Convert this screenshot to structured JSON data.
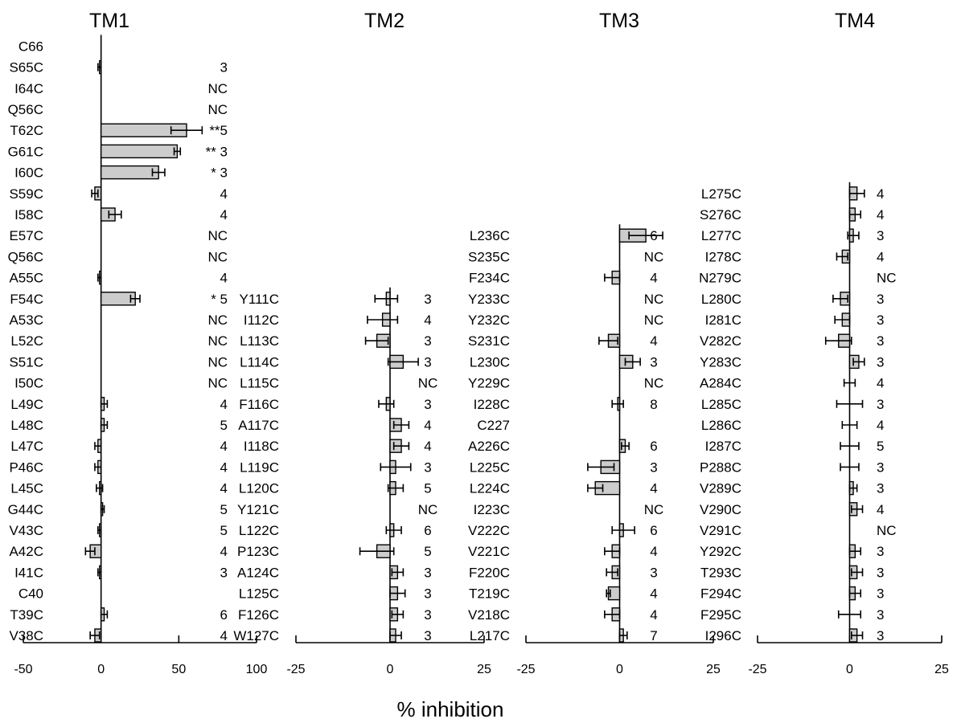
{
  "chart_data": {
    "type": "bar",
    "orientation": "horizontal",
    "xlabel": "% inhibition",
    "panels": [
      {
        "title": "TM1",
        "xlim": [
          -50,
          100
        ],
        "xticks": [
          "-50",
          "0",
          "50",
          "100"
        ],
        "tick_values": [
          -50,
          0,
          50,
          100
        ],
        "rows": [
          {
            "label": "C66",
            "value": null,
            "err": null,
            "n": ""
          },
          {
            "label": "S65C",
            "value": -1,
            "err": 1,
            "n": "3"
          },
          {
            "label": "I64C",
            "value": null,
            "err": null,
            "n": "NC"
          },
          {
            "label": "Q56C",
            "value": null,
            "err": null,
            "n": "NC"
          },
          {
            "label": "T62C",
            "value": 55,
            "err": 10,
            "n": "**5"
          },
          {
            "label": "G61C",
            "value": 49,
            "err": 2,
            "n": "** 3"
          },
          {
            "label": "I60C",
            "value": 37,
            "err": 4,
            "n": "* 3"
          },
          {
            "label": "S59C",
            "value": -4,
            "err": 2,
            "n": "4"
          },
          {
            "label": "I58C",
            "value": 9,
            "err": 4,
            "n": "4"
          },
          {
            "label": "E57C",
            "value": null,
            "err": null,
            "n": "NC"
          },
          {
            "label": "Q56C",
            "value": null,
            "err": null,
            "n": "NC"
          },
          {
            "label": "A55C",
            "value": -1,
            "err": 1,
            "n": "4"
          },
          {
            "label": "F54C",
            "value": 22,
            "err": 3,
            "n": "* 5"
          },
          {
            "label": "A53C",
            "value": null,
            "err": null,
            "n": "NC"
          },
          {
            "label": "L52C",
            "value": null,
            "err": null,
            "n": "NC"
          },
          {
            "label": "S51C",
            "value": null,
            "err": null,
            "n": "NC"
          },
          {
            "label": "I50C",
            "value": null,
            "err": null,
            "n": "NC"
          },
          {
            "label": "L49C",
            "value": 2,
            "err": 2,
            "n": "4"
          },
          {
            "label": "L48C",
            "value": 2,
            "err": 2,
            "n": "5"
          },
          {
            "label": "L47C",
            "value": -2,
            "err": 2,
            "n": "4"
          },
          {
            "label": "P46C",
            "value": -2,
            "err": 2,
            "n": "4"
          },
          {
            "label": "L45C",
            "value": -1,
            "err": 2,
            "n": "4"
          },
          {
            "label": "G44C",
            "value": 1,
            "err": 1,
            "n": "5"
          },
          {
            "label": "V43C",
            "value": -1,
            "err": 1,
            "n": "5"
          },
          {
            "label": "A42C",
            "value": -7,
            "err": 3,
            "n": "4"
          },
          {
            "label": "I41C",
            "value": -1,
            "err": 1,
            "n": "3"
          },
          {
            "label": "C40",
            "value": null,
            "err": null,
            "n": ""
          },
          {
            "label": "T39C",
            "value": 2,
            "err": 2,
            "n": "6"
          },
          {
            "label": "V38C",
            "value": -4,
            "err": 3,
            "n": "4"
          }
        ]
      },
      {
        "title": "TM2",
        "xlim": [
          -25,
          25
        ],
        "xticks": [
          "-25",
          "0",
          "25"
        ],
        "tick_values": [
          -25,
          0,
          25
        ],
        "rows": [
          {
            "label": "Y111C",
            "value": -1,
            "err": 3,
            "n": "3"
          },
          {
            "label": "I112C",
            "value": -2,
            "err": 4,
            "n": "4"
          },
          {
            "label": "L113C",
            "value": -3.5,
            "err": 3,
            "n": "3"
          },
          {
            "label": "L114C",
            "value": 3.5,
            "err": 4,
            "n": "3"
          },
          {
            "label": "L115C",
            "value": null,
            "err": null,
            "n": "NC"
          },
          {
            "label": "F116C",
            "value": -1,
            "err": 2,
            "n": "3"
          },
          {
            "label": "A117C",
            "value": 3,
            "err": 2,
            "n": "4"
          },
          {
            "label": "I118C",
            "value": 3,
            "err": 2,
            "n": "4"
          },
          {
            "label": "L119C",
            "value": 1.5,
            "err": 4,
            "n": "3"
          },
          {
            "label": "L120C",
            "value": 1.5,
            "err": 2,
            "n": "5"
          },
          {
            "label": "Y121C",
            "value": null,
            "err": null,
            "n": "NC"
          },
          {
            "label": "L122C",
            "value": 1,
            "err": 2,
            "n": "6"
          },
          {
            "label": "P123C",
            "value": -3.5,
            "err": 4.5,
            "n": "5"
          },
          {
            "label": "A124C",
            "value": 2,
            "err": 1.5,
            "n": "3"
          },
          {
            "label": "L125C",
            "value": 2,
            "err": 2,
            "n": "3"
          },
          {
            "label": "F126C",
            "value": 2,
            "err": 1.5,
            "n": "3"
          },
          {
            "label": "W127C",
            "value": 1.5,
            "err": 1.5,
            "n": "3"
          }
        ]
      },
      {
        "title": "TM3",
        "xlim": [
          -25,
          25
        ],
        "xticks": [
          "-25",
          "0",
          "25"
        ],
        "tick_values": [
          -25,
          0,
          25
        ],
        "rows": [
          {
            "label": "L236C",
            "value": 7,
            "err": 4.5,
            "n": "6"
          },
          {
            "label": "S235C",
            "value": null,
            "err": null,
            "n": "NC"
          },
          {
            "label": "F234C",
            "value": -2,
            "err": 2,
            "n": "4"
          },
          {
            "label": "Y233C",
            "value": null,
            "err": null,
            "n": "NC"
          },
          {
            "label": "Y232C",
            "value": null,
            "err": null,
            "n": "NC"
          },
          {
            "label": "S231C",
            "value": -3,
            "err": 2.5,
            "n": "4"
          },
          {
            "label": "L230C",
            "value": 3.5,
            "err": 2,
            "n": "3"
          },
          {
            "label": "Y229C",
            "value": null,
            "err": null,
            "n": "NC"
          },
          {
            "label": "I228C",
            "value": -0.5,
            "err": 1.5,
            "n": "8"
          },
          {
            "label": "C227",
            "value": null,
            "err": null,
            "n": ""
          },
          {
            "label": "A226C",
            "value": 1.5,
            "err": 1,
            "n": "6"
          },
          {
            "label": "L225C",
            "value": -5,
            "err": 3.5,
            "n": "3"
          },
          {
            "label": "L224C",
            "value": -6.5,
            "err": 2,
            "n": "4"
          },
          {
            "label": "I223C",
            "value": null,
            "err": null,
            "n": "NC"
          },
          {
            "label": "V222C",
            "value": 1,
            "err": 3,
            "n": "6"
          },
          {
            "label": "V221C",
            "value": -2,
            "err": 2,
            "n": "4"
          },
          {
            "label": "F220C",
            "value": -2,
            "err": 1.5,
            "n": "3"
          },
          {
            "label": "T219C",
            "value": -3,
            "err": 0.5,
            "n": "4"
          },
          {
            "label": "V218C",
            "value": -2,
            "err": 2,
            "n": "4"
          },
          {
            "label": "L217C",
            "value": 1,
            "err": 1,
            "n": "7"
          }
        ]
      },
      {
        "title": "TM4",
        "xlim": [
          -25,
          25
        ],
        "xticks": [
          "-25",
          "0",
          "25"
        ],
        "tick_values": [
          -25,
          0,
          25
        ],
        "rows": [
          {
            "label": "L275C",
            "value": 2,
            "err": 2,
            "n": "4"
          },
          {
            "label": "S276C",
            "value": 1.5,
            "err": 1.5,
            "n": "4"
          },
          {
            "label": "L277C",
            "value": 1,
            "err": 1.5,
            "n": "3"
          },
          {
            "label": "I278C",
            "value": -2,
            "err": 1.5,
            "n": "4"
          },
          {
            "label": "N279C",
            "value": null,
            "err": null,
            "n": "NC"
          },
          {
            "label": "L280C",
            "value": -2.5,
            "err": 2,
            "n": "3"
          },
          {
            "label": "I281C",
            "value": -2,
            "err": 2,
            "n": "3"
          },
          {
            "label": "V282C",
            "value": -3,
            "err": 3.5,
            "n": "3"
          },
          {
            "label": "Y283C",
            "value": 2.5,
            "err": 1.5,
            "n": "3"
          },
          {
            "label": "A284C",
            "value": 0,
            "err": 1.5,
            "n": "4"
          },
          {
            "label": "L285C",
            "value": 0,
            "err": 3.5,
            "n": "3"
          },
          {
            "label": "L286C",
            "value": 0,
            "err": 2,
            "n": "4"
          },
          {
            "label": "I287C",
            "value": 0,
            "err": 2.5,
            "n": "5"
          },
          {
            "label": "P288C",
            "value": 0,
            "err": 2.5,
            "n": "3"
          },
          {
            "label": "V289C",
            "value": 1,
            "err": 1,
            "n": "3"
          },
          {
            "label": "V290C",
            "value": 2,
            "err": 1.5,
            "n": "4"
          },
          {
            "label": "V291C",
            "value": null,
            "err": null,
            "n": "NC"
          },
          {
            "label": "Y292C",
            "value": 1.5,
            "err": 1.5,
            "n": "3"
          },
          {
            "label": "T293C",
            "value": 2,
            "err": 1.5,
            "n": "3"
          },
          {
            "label": "F294C",
            "value": 1.5,
            "err": 1.5,
            "n": "3"
          },
          {
            "label": "F295C",
            "value": 0,
            "err": 3,
            "n": "3"
          },
          {
            "label": "I296C",
            "value": 2,
            "err": 1.5,
            "n": "3"
          }
        ]
      }
    ]
  }
}
